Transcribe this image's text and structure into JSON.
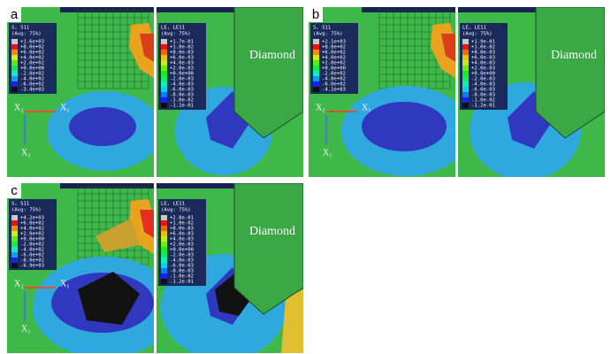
{
  "panels": [
    {
      "letter": "a",
      "stress": {
        "title": "S, S11",
        "subtitle": "(Avg: 75%)",
        "values": [
          "+1.6e+03",
          "+8.0e+02",
          "+6.0e+02",
          "+4.0e+02",
          "+2.0e+02",
          "+0.0e+00",
          "-2.0e+02",
          "-4.0e+02",
          "-6.0e+02",
          "-3.4e+03"
        ]
      },
      "strain": {
        "title": "LE, LE11",
        "subtitle": "(Avg: 75%)",
        "values": [
          "+1.7e-01",
          "+1.0e-02",
          "+8.0e-03",
          "+6.0e-03",
          "+4.0e-03",
          "+2.0e-03",
          "+0.0e+00",
          "-2.0e-03",
          "-4.0e-03",
          "-6.0e-03",
          "-8.0e-03",
          "-1.0e-02",
          "-1.1e-01"
        ]
      },
      "diamond": "Diamond",
      "x2": "X₂",
      "x1": "X₁"
    },
    {
      "letter": "b",
      "stress": {
        "title": "S, S11",
        "subtitle": "(Avg: 75%)",
        "values": [
          "+2.1e+03",
          "+8.0e+02",
          "+6.0e+02",
          "+4.0e+02",
          "+2.0e+02",
          "+0.0e+00",
          "-2.0e+02",
          "-4.0e+02",
          "-6.0e+02",
          "-4.1e+03"
        ]
      },
      "strain": {
        "title": "LE, LE11",
        "subtitle": "(Avg: 75%)",
        "values": [
          "+1.9e-01",
          "+1.0e-02",
          "+8.0e-03",
          "+6.0e-03",
          "+4.0e-03",
          "+2.0e-03",
          "+0.0e+00",
          "-2.0e-03",
          "-4.0e-03",
          "-6.0e-03",
          "-8.0e-03",
          "-1.0e-02",
          "-1.2e-01"
        ]
      },
      "diamond": "Diamond",
      "x2": "X₂",
      "x1": "X₁"
    },
    {
      "letter": "c",
      "stress": {
        "title": "S, S11",
        "subtitle": "(Avg: 75%)",
        "values": [
          "+4.2e+03",
          "+6.0e+02",
          "+4.0e+02",
          "+2.0e+02",
          "+0.0e+00",
          "-2.0e+02",
          "-4.0e+02",
          "-6.0e+02",
          "-8.0e+02",
          "-6.9e+03"
        ]
      },
      "strain": {
        "title": "LE, LE11",
        "subtitle": "(Avg: 75%)",
        "values": [
          "+2.8e-01",
          "+1.0e-02",
          "+8.0e-03",
          "+6.0e-03",
          "+4.0e-03",
          "+2.0e-03",
          "+0.0e+00",
          "-2.0e-03",
          "-4.0e-03",
          "-6.0e-03",
          "-8.0e-03",
          "-1.0e-02",
          "-1.2e-01"
        ]
      },
      "diamond": "Diamond",
      "x2": "X₂",
      "x1": "X₁"
    }
  ]
}
